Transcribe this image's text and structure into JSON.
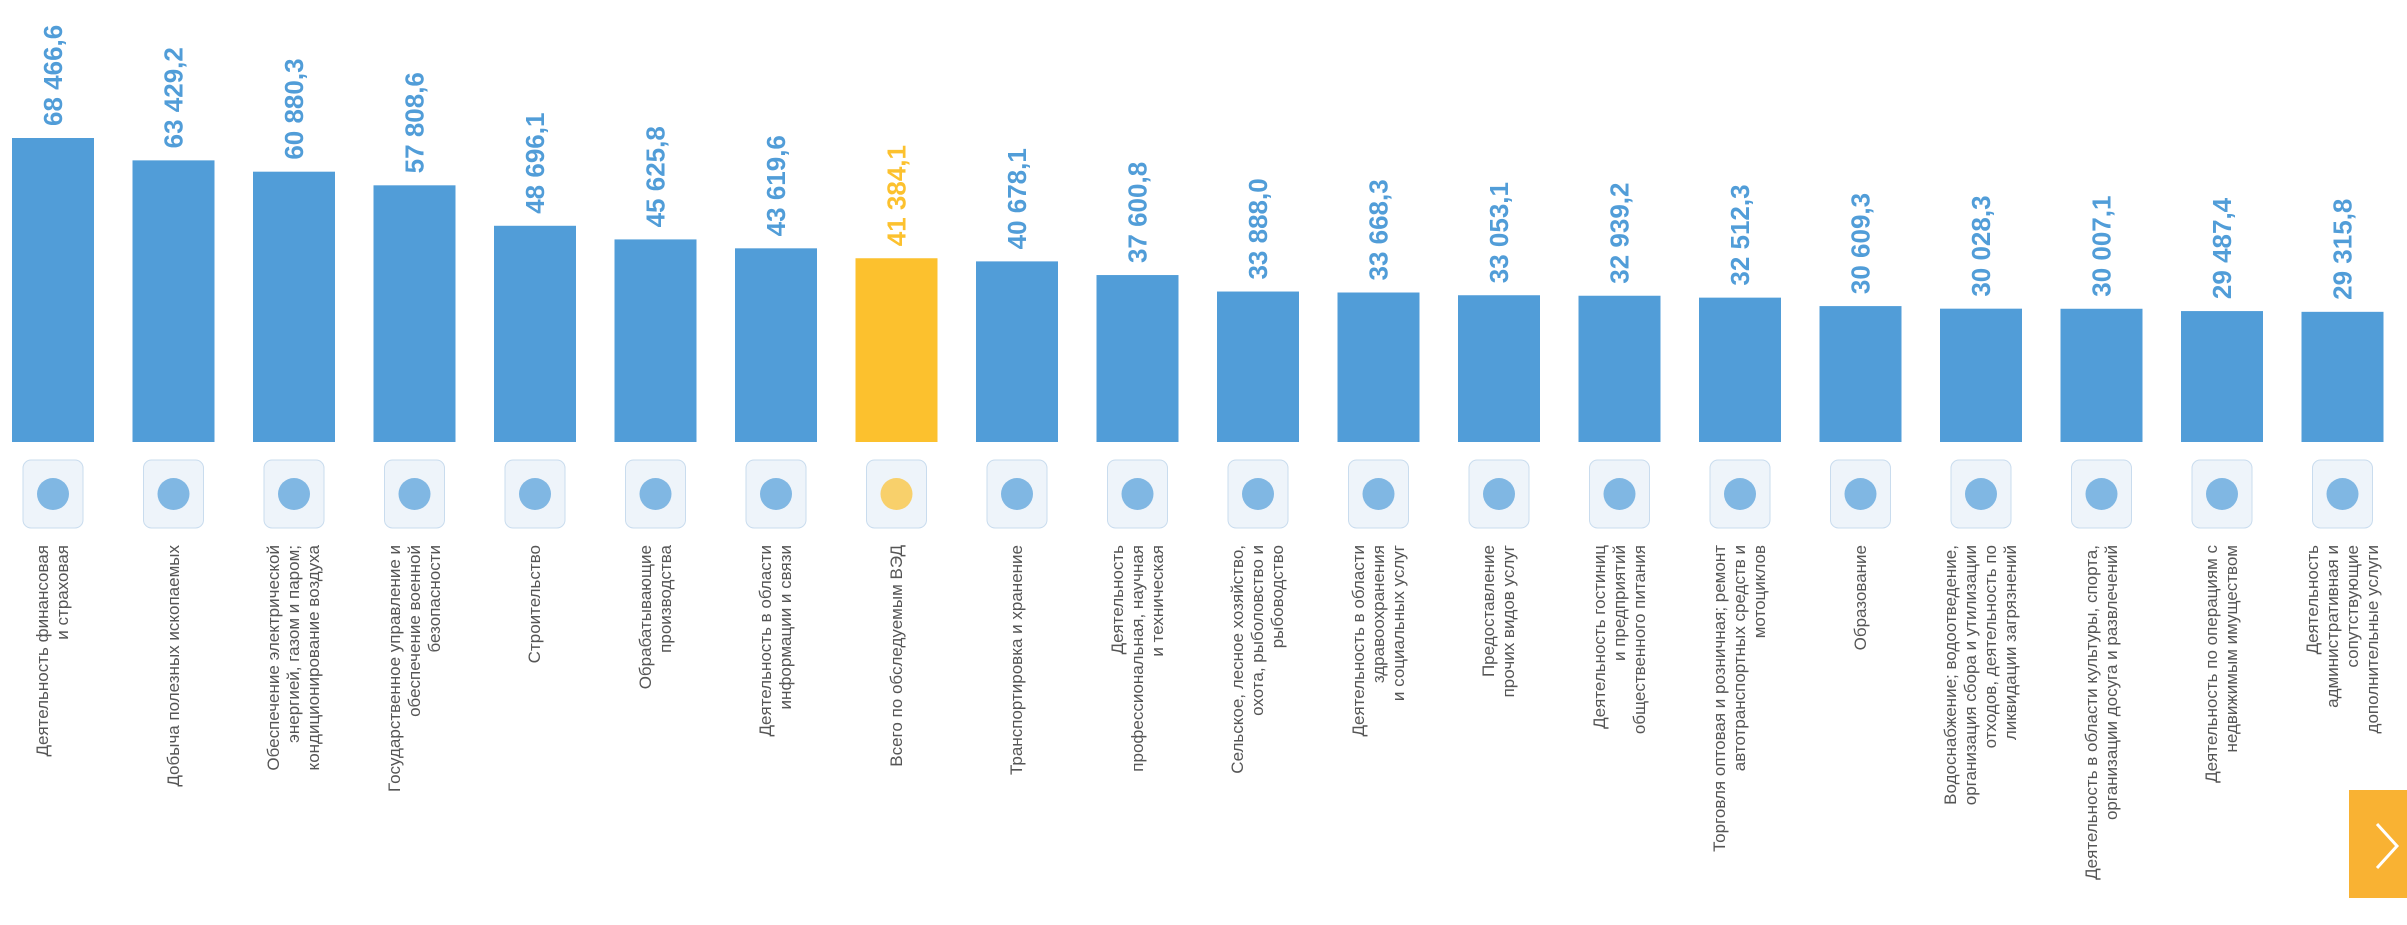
{
  "chart_data": {
    "type": "bar",
    "categories": [
      "Деятельность финансовая\nи страховая",
      "Добыча полезных ископаемых",
      "Обеспечение электрической\nэнергией, газом и паром;\nкондиционирование воздуха",
      "Государственное управление и\nобеспечение военной\nбезопасности",
      "Строительство",
      "Обрабатывающие\nпроизводства",
      "Деятельность в области\nинформации и связи",
      "Всего по обследуемым ВЭД",
      "Транспортировка и хранение",
      "Деятельность\nпрофессиональная, научная\nи техническая",
      "Сельское, лесное хозяйство,\nохота, рыболовство и\nрыбоводство",
      "Деятельность в области\nздравоохранения\nи социальных услуг",
      "Предоставление\nпрочих видов услуг",
      "Деятельность гостиниц\nи предприятий\nобщественного питания",
      "Торговля оптовая и розничная; ремонт\nавтотранспортных средств и\nмотоциклов",
      "Образование",
      "Водоснабжение; водоотведение,\nорганизация сбора и утилизации\nотходов, деятельность по\nликвидации загрязнений",
      "Деятельность в области культуры, спорта,\nорганизации досуга и развлечений",
      "Деятельность по операциям с\nнедвижимым имуществом",
      "Деятельность\nадминистративная и\nсопутствующие\nдополнительные услуги"
    ],
    "values": [
      68466.6,
      63429.2,
      60880.3,
      57808.6,
      48696.1,
      45625.8,
      43619.6,
      41384.1,
      40678.1,
      37600.8,
      33888.0,
      33668.3,
      33053.1,
      32939.2,
      32512.3,
      30609.3,
      30028.3,
      30007.1,
      29487.4,
      29315.8
    ],
    "value_labels": [
      "68 466,6",
      "63 429,2",
      "60 880,3",
      "57 808,6",
      "48 696,1",
      "45 625,8",
      "43 619,6",
      "41 384,1",
      "40 678,1",
      "37 600,8",
      "33 888,0",
      "33 668,3",
      "33 053,1",
      "32 939,2",
      "32 512,3",
      "30 609,3",
      "30 028,3",
      "30 007,1",
      "29 487,4",
      "29 315,8"
    ],
    "colors": [
      "#519dd8",
      "#519dd8",
      "#519dd8",
      "#519dd8",
      "#519dd8",
      "#519dd8",
      "#519dd8",
      "#fcc12e",
      "#519dd8",
      "#519dd8",
      "#519dd8",
      "#519dd8",
      "#519dd8",
      "#519dd8",
      "#519dd8",
      "#519dd8",
      "#519dd8",
      "#519dd8",
      "#519dd8",
      "#519dd8"
    ]
  }
}
